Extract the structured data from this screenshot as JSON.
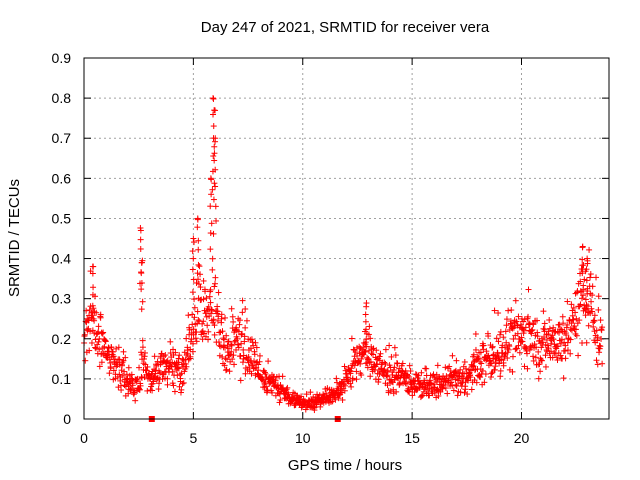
{
  "chart_data": {
    "type": "scatter",
    "title": "Day 247 of 2021, SRMTID for receiver vera",
    "xlabel": "GPS time / hours",
    "ylabel": "SRMTID / TECUs",
    "xlim": [
      0,
      24
    ],
    "ylim": [
      0,
      0.9
    ],
    "x_ticks": [
      0,
      5,
      10,
      15,
      20
    ],
    "x_tick_labels": [
      "0",
      "5",
      "10",
      "15",
      "20"
    ],
    "y_ticks": [
      0,
      0.1,
      0.2,
      0.3,
      0.4,
      0.5,
      0.6,
      0.7,
      0.8,
      0.9
    ],
    "y_tick_labels": [
      "0",
      "0.1",
      "0.2",
      "0.3",
      "0.4",
      "0.5",
      "0.6",
      "0.7",
      "0.8",
      "0.9"
    ],
    "grid": true,
    "marker": "+",
    "color": "#ff0000",
    "envelope": {
      "x": [
        0.0,
        0.3,
        0.5,
        1.0,
        1.5,
        2.0,
        2.5,
        2.7,
        3.0,
        3.5,
        4.0,
        4.5,
        5.0,
        5.3,
        5.6,
        5.9,
        6.2,
        6.5,
        7.0,
        7.5,
        8.0,
        8.5,
        9.0,
        9.5,
        10.0,
        10.5,
        11.0,
        11.5,
        12.0,
        12.5,
        13.0,
        13.5,
        14.0,
        14.5,
        15.0,
        15.5,
        16.0,
        16.5,
        17.0,
        17.5,
        18.0,
        18.5,
        19.0,
        19.5,
        20.0,
        20.5,
        21.0,
        21.5,
        22.0,
        22.5,
        23.0,
        23.5
      ],
      "y": [
        0.2,
        0.24,
        0.21,
        0.17,
        0.13,
        0.09,
        0.07,
        0.17,
        0.09,
        0.12,
        0.13,
        0.12,
        0.2,
        0.3,
        0.27,
        0.3,
        0.21,
        0.17,
        0.2,
        0.16,
        0.12,
        0.09,
        0.07,
        0.05,
        0.04,
        0.04,
        0.05,
        0.06,
        0.1,
        0.15,
        0.17,
        0.13,
        0.11,
        0.1,
        0.09,
        0.08,
        0.08,
        0.09,
        0.1,
        0.1,
        0.13,
        0.15,
        0.17,
        0.19,
        0.21,
        0.2,
        0.18,
        0.2,
        0.19,
        0.27,
        0.32,
        0.2
      ]
    },
    "spikes": [
      {
        "x": 0.4,
        "y": 0.38
      },
      {
        "x": 2.6,
        "y": 0.47
      },
      {
        "x": 2.65,
        "y": 0.39
      },
      {
        "x": 5.0,
        "y": 0.45
      },
      {
        "x": 5.2,
        "y": 0.5
      },
      {
        "x": 5.8,
        "y": 0.6
      },
      {
        "x": 5.9,
        "y": 0.8
      },
      {
        "x": 5.95,
        "y": 0.77
      },
      {
        "x": 6.0,
        "y": 0.7
      },
      {
        "x": 12.9,
        "y": 0.28
      },
      {
        "x": 22.8,
        "y": 0.43
      },
      {
        "x": 23.0,
        "y": 0.4
      }
    ],
    "x_markers": [
      3.1,
      11.6
    ],
    "n_points": 1500
  }
}
